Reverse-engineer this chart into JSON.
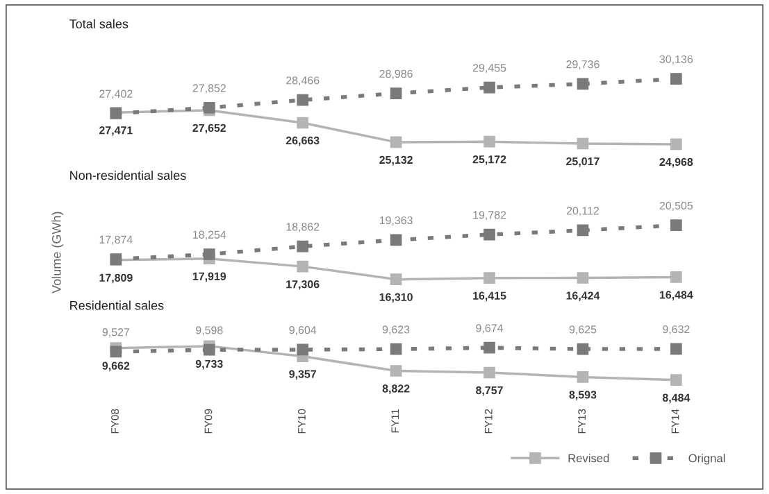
{
  "chart_data": [
    {
      "type": "line",
      "title": "Total sales",
      "categories": [
        null,
        null,
        null,
        null,
        null,
        null,
        null
      ],
      "tick_labels": false,
      "marker": "square",
      "legend": false,
      "series": [
        {
          "color": "#b4b4b4",
          "line_style": "solid",
          "values": [
            27471,
            27652,
            26663,
            25132,
            25172,
            25017,
            24968
          ],
          "value_labels": [
            "27,471",
            "27,652",
            "26,663",
            "25,132",
            "25,172",
            "25,017",
            "24,968"
          ]
        },
        {
          "color": "#7a7a7a",
          "line_style": "dashed",
          "values": [
            27402,
            27852,
            28466,
            28986,
            29455,
            29736,
            30136
          ],
          "value_labels": [
            "27,402",
            "27,852",
            "28,466",
            "28,986",
            "29,455",
            "29,736",
            "30,136"
          ]
        }
      ]
    },
    {
      "type": "line",
      "title": "Non-residential sales",
      "ylabel": "Volume (GWh)",
      "categories": [
        null,
        null,
        null,
        null,
        null,
        null,
        null
      ],
      "tick_labels": false,
      "marker": "square",
      "legend": false,
      "series": [
        {
          "color": "#b4b4b4",
          "line_style": "solid",
          "values": [
            17809,
            17919,
            17306,
            16310,
            16415,
            16424,
            16484
          ],
          "value_labels": [
            "17,809",
            "17,919",
            "17,306",
            "16,310",
            "16,415",
            "16,424",
            "16,484"
          ]
        },
        {
          "color": "#7a7a7a",
          "line_style": "dashed",
          "values": [
            17874,
            18254,
            18862,
            19363,
            19782,
            20112,
            20505
          ],
          "value_labels": [
            "17,874",
            "18,254",
            "18,862",
            "19,363",
            "19,782",
            "20,112",
            "20,505"
          ]
        }
      ]
    },
    {
      "type": "line",
      "title": "Residential sales",
      "categories": [
        "FY08",
        "FY09",
        "FY10",
        "FY11",
        "FY12",
        "FY13",
        "FY14"
      ],
      "tick_labels": "x",
      "marker": "square",
      "legend": "bottom right",
      "series": [
        {
          "name": "Revised",
          "color": "#b4b4b4",
          "line_style": "solid",
          "values": [
            9662,
            9733,
            9357,
            8822,
            8757,
            8593,
            8484
          ],
          "value_labels": [
            "9,662",
            "9,733",
            "9,357",
            "8,822",
            "8,757",
            "8,593",
            "8,484"
          ]
        },
        {
          "name": "Orignal",
          "color": "#7a7a7a",
          "line_style": "dashed",
          "values": [
            9527,
            9598,
            9604,
            9623,
            9674,
            9625,
            9632
          ],
          "value_labels": [
            "9,527",
            "9,598",
            "9,604",
            "9,623",
            "9,674",
            "9,625",
            "9,632"
          ]
        }
      ]
    }
  ]
}
